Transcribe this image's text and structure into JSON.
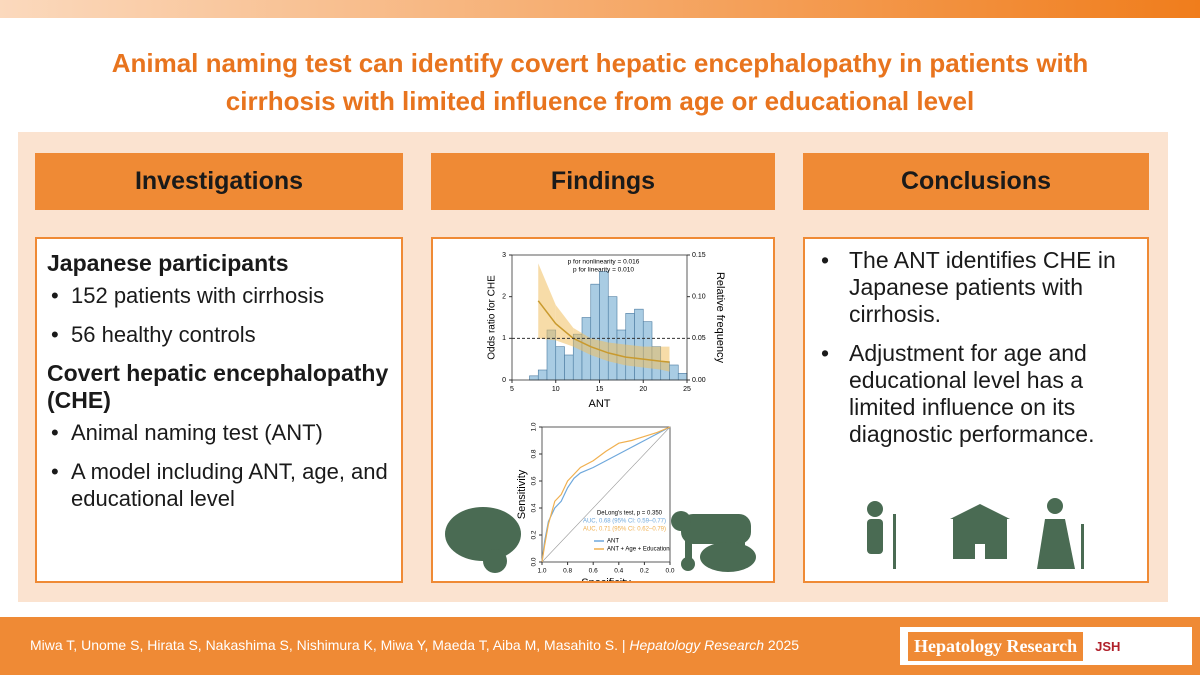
{
  "header": {
    "title_line1": "Animal naming test can identify covert hepatic encephalopathy in patients with",
    "title_line2": "cirrhosis with limited influence from age or educational level"
  },
  "sections": [
    "Investigations",
    "Findings",
    "Conclusions"
  ],
  "investigations": [
    {
      "heading": "Japanese participants",
      "items": [
        "152 patients with cirrhosis",
        "56 healthy controls"
      ]
    },
    {
      "heading": "Covert hepatic encephalopathy (CHE)",
      "items": [
        "Animal naming test (ANT)",
        "A model including ANT, age, and educational level"
      ]
    }
  ],
  "findings": {
    "chart_data": [
      {
        "type": "histogram",
        "annotations": [
          "p for nonlinearity = 0.016",
          "p for linearity = 0.010"
        ],
        "x_label": "ANT",
        "y_label": "Odds ratio for CHE",
        "y2_label": "Relative frequency",
        "xlim": [
          5,
          25
        ],
        "xticks": [
          5,
          10,
          15,
          20,
          25
        ],
        "ylim": [
          0,
          3
        ],
        "yticks": [
          0,
          1,
          2,
          3
        ],
        "y2lim": [
          0,
          0.15
        ],
        "y2ticks": [
          {
            "value": 0,
            "label": "0.00"
          },
          {
            "value": 0.05,
            "label": "0.05"
          },
          {
            "value": 0.1,
            "label": "0.10"
          },
          {
            "value": 0.15,
            "label": "0.15"
          }
        ],
        "bins": [
          7,
          8,
          9,
          10,
          11,
          12,
          13,
          14,
          15,
          16,
          17,
          18,
          19,
          20,
          21,
          22,
          23,
          24,
          25
        ],
        "counts": [
          0.005,
          0.012,
          0.06,
          0.04,
          0.03,
          0.055,
          0.075,
          0.115,
          0.13,
          0.1,
          0.06,
          0.08,
          0.085,
          0.07,
          0.04,
          0.022,
          0.018,
          0.008
        ],
        "bar_color": "#a9cce3",
        "reference_line": 1,
        "curve": {
          "x": [
            8,
            10,
            12,
            14,
            16,
            18,
            20,
            22,
            23
          ],
          "values": [
            1.9,
            1.35,
            1.0,
            0.8,
            0.65,
            0.55,
            0.5,
            0.45,
            0.43
          ],
          "lower": [
            1.0,
            0.95,
            0.8,
            0.6,
            0.45,
            0.35,
            0.3,
            0.25,
            0.2
          ],
          "upper": [
            2.8,
            1.8,
            1.25,
            1.0,
            0.9,
            0.85,
            0.8,
            0.8,
            0.8
          ],
          "color": "#c99a2e",
          "band_color": "#f0c060"
        }
      },
      {
        "type": "roc",
        "x_label": "Specificity",
        "y_label": "Sensitivity",
        "annotations": [
          "DeLong's test, p = 0.350"
        ],
        "xlim": [
          1,
          0
        ],
        "xticks": [
          {
            "value": 1,
            "label": "1.0"
          },
          0.8,
          0.6,
          0.4,
          0.2,
          {
            "value": 0,
            "label": "0.0"
          }
        ],
        "ylim": [
          0,
          1
        ],
        "yticks": [
          {
            "value": 0,
            "label": "0.0"
          },
          0.2,
          0.4,
          0.6,
          0.8,
          {
            "value": 1,
            "label": "1.0"
          }
        ],
        "series": [
          {
            "name": "ANT",
            "color": "#6fa8dc",
            "auc_label": "AUC, 0.68 (95% CI: 0.59–0.77)",
            "x": [
              1,
              0.98,
              0.95,
              0.9,
              0.85,
              0.8,
              0.75,
              0.7,
              0.6,
              0.5,
              0.4,
              0.3,
              0.2,
              0.1,
              0
            ],
            "values": [
              0,
              0.15,
              0.3,
              0.4,
              0.45,
              0.55,
              0.62,
              0.66,
              0.7,
              0.75,
              0.8,
              0.85,
              0.9,
              0.95,
              1
            ]
          },
          {
            "name": "ANT + Age + Education",
            "color": "#f0b050",
            "auc_label": "AUC, 0.71 (95% CI: 0.62–0.79)",
            "x": [
              1,
              0.98,
              0.95,
              0.9,
              0.85,
              0.8,
              0.75,
              0.7,
              0.6,
              0.5,
              0.4,
              0.3,
              0.2,
              0.1,
              0
            ],
            "values": [
              0,
              0.12,
              0.28,
              0.45,
              0.5,
              0.6,
              0.65,
              0.7,
              0.75,
              0.82,
              0.88,
              0.9,
              0.93,
              0.96,
              1
            ]
          }
        ]
      }
    ]
  },
  "conclusions": [
    "The ANT identifies CHE in Japanese patients with cirrhosis.",
    "Adjustment for age and educational level has a limited influence on its diagnostic performance."
  ],
  "footer": {
    "authors": "Miwa T, Unome S, Hirata S, Nakashima S, Nishimura K, Miwa Y, Maeda T, Aiba M, Masahito S. |",
    "journal": "Hepatology Research",
    "year": "2025",
    "logo_text": "Hepatology Research",
    "logo_mark": "JSH"
  }
}
